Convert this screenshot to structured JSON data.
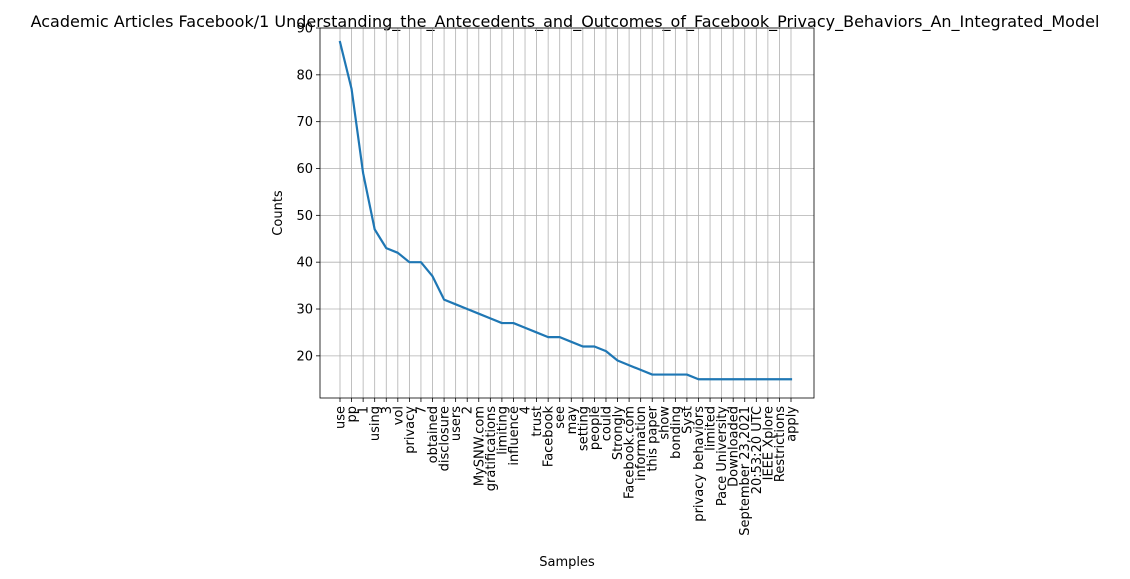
{
  "chart_data": {
    "type": "line",
    "title": "Academic Articles Facebook/1 Understanding_the_Antecedents_and_Outcomes_of_Facebook_Privacy_Behaviors_An_Integrated_Model",
    "xlabel": "Samples",
    "ylabel": "Counts",
    "grid": true,
    "ylim": [
      11,
      90
    ],
    "yticks": [
      20,
      30,
      40,
      50,
      60,
      70,
      80,
      90
    ],
    "categories": [
      "use",
      "pp",
      "1",
      "using",
      "3",
      "vol",
      "privacy",
      "7",
      "obtained",
      "disclosure",
      "users",
      "2",
      "MySNW.com",
      "gratifications",
      "limiting",
      "influence",
      "4",
      "trust",
      "Facebook",
      "see",
      "may",
      "setting",
      "people",
      "could",
      "Strongly",
      "Facebook.com",
      "information",
      "this paper",
      "show",
      "bonding",
      "Syst",
      "privacy behaviors",
      "limited",
      "Pace University",
      "Downloaded",
      "September 23,2021",
      "20:53:20 UTC",
      "IEEE Xplore",
      "Restrictions",
      "apply"
    ],
    "series": [
      {
        "values": [
          87,
          77,
          59,
          47,
          43,
          42,
          40,
          40,
          37,
          32,
          31,
          30,
          29,
          28,
          27,
          27,
          26,
          25,
          24,
          24,
          23,
          22,
          22,
          21,
          19,
          18,
          17,
          16,
          16,
          16,
          16,
          15,
          15,
          15,
          15,
          15,
          15,
          15,
          15,
          15
        ],
        "color": "#1f77b4"
      }
    ]
  }
}
